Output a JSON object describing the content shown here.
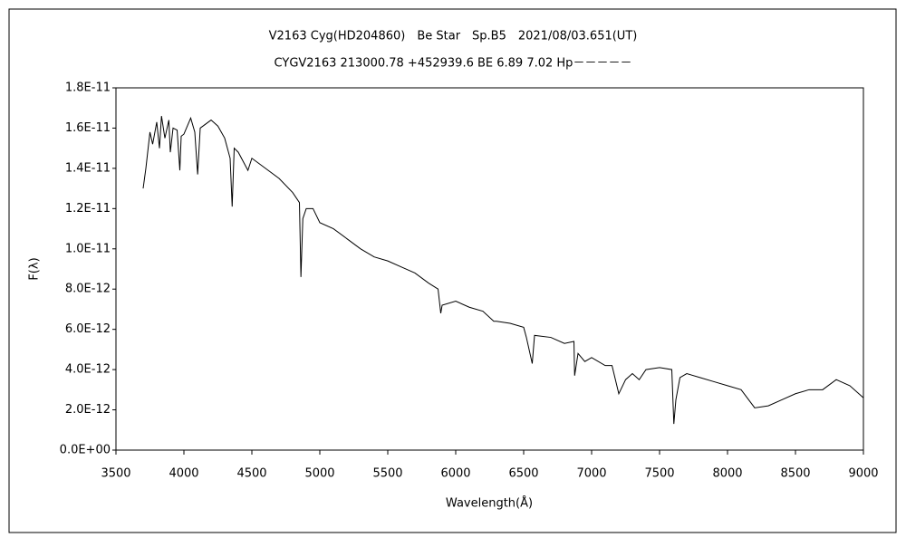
{
  "chart_data": {
    "type": "line",
    "title": "V2163 Cyg(HD204860)　Be Star　Sp.B5　2021/08/03.651(UT)",
    "subtitle": "CYGV2163 213000.78 +452939.6 BE 6.89 7.02 Hp－－－－－",
    "x_label": "Wavelength(Å)",
    "y_label": "F(λ)",
    "color": "#000000",
    "x": [
      3700,
      3720,
      3750,
      3770,
      3800,
      3820,
      3835,
      3860,
      3889,
      3900,
      3920,
      3950,
      3970,
      3980,
      4000,
      4050,
      4080,
      4101,
      4120,
      4200,
      4250,
      4300,
      4340,
      4355,
      4370,
      4400,
      4471,
      4500,
      4600,
      4700,
      4800,
      4850,
      4861,
      4875,
      4900,
      4950,
      5000,
      5100,
      5200,
      5300,
      5400,
      5500,
      5600,
      5700,
      5800,
      5870,
      5890,
      5900,
      6000,
      6100,
      6200,
      6280,
      6300,
      6400,
      6500,
      6520,
      6563,
      6580,
      6700,
      6800,
      6870,
      6875,
      6900,
      6950,
      7000,
      7100,
      7150,
      7200,
      7250,
      7300,
      7350,
      7400,
      7500,
      7590,
      7605,
      7620,
      7650,
      7700,
      7800,
      7900,
      8000,
      8100,
      8200,
      8300,
      8400,
      8500,
      8600,
      8700,
      8800,
      8900,
      9000
    ],
    "values": [
      1.3e-11,
      1.4e-11,
      1.58e-11,
      1.52e-11,
      1.63e-11,
      1.5e-11,
      1.66e-11,
      1.55e-11,
      1.64e-11,
      1.48e-11,
      1.6e-11,
      1.59e-11,
      1.39e-11,
      1.56e-11,
      1.57e-11,
      1.65e-11,
      1.58e-11,
      1.37e-11,
      1.6e-11,
      1.64e-11,
      1.61e-11,
      1.55e-11,
      1.45e-11,
      1.21e-11,
      1.5e-11,
      1.48e-11,
      1.39e-11,
      1.45e-11,
      1.4e-11,
      1.35e-11,
      1.28e-11,
      1.23e-11,
      8.6e-12,
      1.15e-11,
      1.2e-11,
      1.2e-11,
      1.13e-11,
      1.1e-11,
      1.05e-11,
      1e-11,
      9.6e-12,
      9.4e-12,
      9.1e-12,
      8.8e-12,
      8.3e-12,
      8e-12,
      6.8e-12,
      7.2e-12,
      7.4e-12,
      7.1e-12,
      6.9e-12,
      6.4e-12,
      6.4e-12,
      6.3e-12,
      6.1e-12,
      5.6e-12,
      4.3e-12,
      5.7e-12,
      5.6e-12,
      5.3e-12,
      5.4e-12,
      3.7e-12,
      4.8e-12,
      4.4e-12,
      4.6e-12,
      4.2e-12,
      4.2e-12,
      2.8e-12,
      3.5e-12,
      3.8e-12,
      3.5e-12,
      4e-12,
      4.1e-12,
      4e-12,
      1.3e-12,
      2.5e-12,
      3.6e-12,
      3.8e-12,
      3.6e-12,
      3.4e-12,
      3.2e-12,
      3e-12,
      2.1e-12,
      2.2e-12,
      2.5e-12,
      2.8e-12,
      3e-12,
      3e-12,
      3.5e-12,
      3.2e-12,
      2.6e-12
    ],
    "xlim": [
      3500,
      9000
    ],
    "xticks": [
      3500,
      4000,
      4500,
      5000,
      5500,
      6000,
      6500,
      7000,
      7500,
      8000,
      8500,
      9000
    ],
    "ylim": [
      0,
      1.8e-11
    ],
    "yticks": [
      {
        "value": 0,
        "label": "0.0E+00"
      },
      {
        "value": 2e-12,
        "label": "2.0E-12"
      },
      {
        "value": 4e-12,
        "label": "4.0E-12"
      },
      {
        "value": 6e-12,
        "label": "6.0E-12"
      },
      {
        "value": 8e-12,
        "label": "8.0E-12"
      },
      {
        "value": 1e-11,
        "label": "1.0E-11"
      },
      {
        "value": 1.2e-11,
        "label": "1.2E-11"
      },
      {
        "value": 1.4e-11,
        "label": "1.4E-11"
      },
      {
        "value": 1.6e-11,
        "label": "1.6E-11"
      },
      {
        "value": 1.8e-11,
        "label": "1.8E-11"
      }
    ],
    "grid": false
  }
}
